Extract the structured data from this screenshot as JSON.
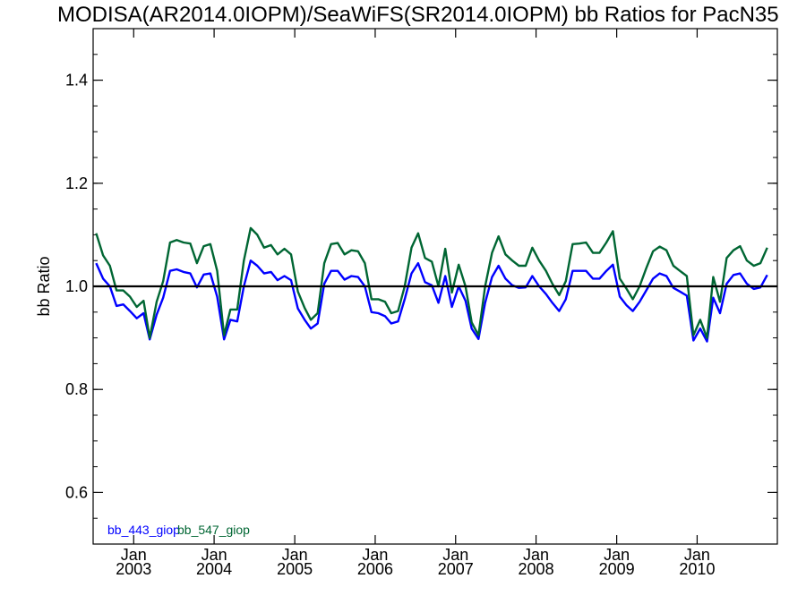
{
  "chart_data": {
    "type": "line",
    "title": "MODISA(AR2014.0IOPM)/SeaWiFS(SR2014.0IOPM)  bb Ratios for PacN35",
    "ylabel": "bb Ratio",
    "xlabel": "",
    "xlim": [
      "2002-07-01",
      "2010-12-31"
    ],
    "ylim": [
      0.5,
      1.5
    ],
    "yticks": [
      0.6,
      0.8,
      1.0,
      1.2,
      1.4
    ],
    "ytick_labels": [
      "0.6",
      "0.8",
      "1.0",
      "1.2",
      "1.4"
    ],
    "xticks": [
      {
        "date": "2003-01-01",
        "month": "Jan",
        "year": "2003"
      },
      {
        "date": "2004-01-01",
        "month": "Jan",
        "year": "2004"
      },
      {
        "date": "2005-01-01",
        "month": "Jan",
        "year": "2005"
      },
      {
        "date": "2006-01-01",
        "month": "Jan",
        "year": "2006"
      },
      {
        "date": "2007-01-01",
        "month": "Jan",
        "year": "2007"
      },
      {
        "date": "2008-01-01",
        "month": "Jan",
        "year": "2008"
      },
      {
        "date": "2009-01-01",
        "month": "Jan",
        "year": "2009"
      },
      {
        "date": "2010-01-01",
        "month": "Jan",
        "year": "2010"
      }
    ],
    "reference_line": {
      "y": 1.0,
      "color": "#000000"
    },
    "grid": false,
    "legend_position": "bottom-left",
    "series": [
      {
        "name": "bb_443_giop",
        "color": "#0000ff",
        "points": [
          [
            "2002-07-15",
            1.045
          ],
          [
            "2002-08-15",
            1.015
          ],
          [
            "2002-09-15",
            1.0
          ],
          [
            "2002-10-15",
            0.962
          ],
          [
            "2002-11-15",
            0.965
          ],
          [
            "2002-12-15",
            0.952
          ],
          [
            "2003-01-15",
            0.938
          ],
          [
            "2003-02-15",
            0.948
          ],
          [
            "2003-03-15",
            0.897
          ],
          [
            "2003-04-15",
            0.945
          ],
          [
            "2003-05-15",
            0.978
          ],
          [
            "2003-06-15",
            1.03
          ],
          [
            "2003-07-15",
            1.033
          ],
          [
            "2003-08-15",
            1.028
          ],
          [
            "2003-09-15",
            1.025
          ],
          [
            "2003-10-15",
            0.998
          ],
          [
            "2003-11-15",
            1.023
          ],
          [
            "2003-12-15",
            1.025
          ],
          [
            "2004-01-15",
            0.98
          ],
          [
            "2004-02-15",
            0.897
          ],
          [
            "2004-03-15",
            0.935
          ],
          [
            "2004-04-15",
            0.932
          ],
          [
            "2004-05-15",
            1.0
          ],
          [
            "2004-06-15",
            1.05
          ],
          [
            "2004-07-15",
            1.04
          ],
          [
            "2004-08-15",
            1.025
          ],
          [
            "2004-09-15",
            1.028
          ],
          [
            "2004-10-15",
            1.012
          ],
          [
            "2004-11-15",
            1.02
          ],
          [
            "2004-12-15",
            1.012
          ],
          [
            "2005-01-15",
            0.957
          ],
          [
            "2005-02-15",
            0.935
          ],
          [
            "2005-03-15",
            0.918
          ],
          [
            "2005-04-15",
            0.928
          ],
          [
            "2005-05-15",
            1.005
          ],
          [
            "2005-06-15",
            1.03
          ],
          [
            "2005-07-15",
            1.03
          ],
          [
            "2005-08-15",
            1.013
          ],
          [
            "2005-09-15",
            1.02
          ],
          [
            "2005-10-15",
            1.018
          ],
          [
            "2005-11-15",
            1.0
          ],
          [
            "2005-12-15",
            0.95
          ],
          [
            "2006-01-15",
            0.948
          ],
          [
            "2006-02-15",
            0.942
          ],
          [
            "2006-03-15",
            0.928
          ],
          [
            "2006-04-15",
            0.932
          ],
          [
            "2006-05-15",
            0.975
          ],
          [
            "2006-06-15",
            1.025
          ],
          [
            "2006-07-15",
            1.045
          ],
          [
            "2006-08-15",
            1.008
          ],
          [
            "2006-09-15",
            1.002
          ],
          [
            "2006-10-15",
            0.968
          ],
          [
            "2006-11-15",
            1.02
          ],
          [
            "2006-12-15",
            0.96
          ],
          [
            "2007-01-15",
            1.0
          ],
          [
            "2007-02-15",
            0.972
          ],
          [
            "2007-03-15",
            0.918
          ],
          [
            "2007-04-15",
            0.898
          ],
          [
            "2007-05-15",
            0.968
          ],
          [
            "2007-06-15",
            1.018
          ],
          [
            "2007-07-15",
            1.04
          ],
          [
            "2007-08-15",
            1.015
          ],
          [
            "2007-09-15",
            1.002
          ],
          [
            "2007-10-15",
            0.997
          ],
          [
            "2007-11-15",
            0.998
          ],
          [
            "2007-12-15",
            1.02
          ],
          [
            "2008-01-15",
            1.0
          ],
          [
            "2008-02-15",
            0.985
          ],
          [
            "2008-03-15",
            0.968
          ],
          [
            "2008-04-15",
            0.952
          ],
          [
            "2008-05-15",
            0.975
          ],
          [
            "2008-06-15",
            1.03
          ],
          [
            "2008-07-15",
            1.03
          ],
          [
            "2008-08-15",
            1.03
          ],
          [
            "2008-09-15",
            1.015
          ],
          [
            "2008-10-15",
            1.015
          ],
          [
            "2008-11-15",
            1.03
          ],
          [
            "2008-12-15",
            1.042
          ],
          [
            "2009-01-15",
            0.98
          ],
          [
            "2009-02-15",
            0.963
          ],
          [
            "2009-03-15",
            0.952
          ],
          [
            "2009-04-15",
            0.97
          ],
          [
            "2009-05-15",
            0.992
          ],
          [
            "2009-06-15",
            1.015
          ],
          [
            "2009-07-15",
            1.025
          ],
          [
            "2009-08-15",
            1.02
          ],
          [
            "2009-09-15",
            0.997
          ],
          [
            "2009-10-15",
            0.99
          ],
          [
            "2009-11-15",
            0.982
          ],
          [
            "2009-12-15",
            0.895
          ],
          [
            "2010-01-15",
            0.918
          ],
          [
            "2010-02-15",
            0.893
          ],
          [
            "2010-03-15",
            0.978
          ],
          [
            "2010-04-15",
            0.948
          ],
          [
            "2010-05-15",
            1.005
          ],
          [
            "2010-06-15",
            1.022
          ],
          [
            "2010-07-15",
            1.025
          ],
          [
            "2010-08-15",
            1.005
          ],
          [
            "2010-09-15",
            0.995
          ],
          [
            "2010-10-15",
            0.998
          ],
          [
            "2010-11-15",
            1.022
          ]
        ]
      },
      {
        "name": "bb_547_giop",
        "color": "#006633",
        "points": [
          [
            "2002-07-15",
            1.103
          ],
          [
            "2002-08-15",
            1.06
          ],
          [
            "2002-09-15",
            1.04
          ],
          [
            "2002-10-15",
            0.992
          ],
          [
            "2002-11-15",
            0.992
          ],
          [
            "2002-12-15",
            0.98
          ],
          [
            "2003-01-15",
            0.96
          ],
          [
            "2003-02-15",
            0.972
          ],
          [
            "2003-03-15",
            0.9
          ],
          [
            "2003-04-15",
            0.97
          ],
          [
            "2003-05-15",
            1.01
          ],
          [
            "2003-06-15",
            1.085
          ],
          [
            "2003-07-15",
            1.09
          ],
          [
            "2003-08-15",
            1.085
          ],
          [
            "2003-09-15",
            1.083
          ],
          [
            "2003-10-15",
            1.045
          ],
          [
            "2003-11-15",
            1.078
          ],
          [
            "2003-12-15",
            1.082
          ],
          [
            "2004-01-15",
            1.03
          ],
          [
            "2004-02-15",
            0.905
          ],
          [
            "2004-03-15",
            0.955
          ],
          [
            "2004-04-15",
            0.955
          ],
          [
            "2004-05-15",
            1.05
          ],
          [
            "2004-06-15",
            1.113
          ],
          [
            "2004-07-15",
            1.1
          ],
          [
            "2004-08-15",
            1.075
          ],
          [
            "2004-09-15",
            1.08
          ],
          [
            "2004-10-15",
            1.062
          ],
          [
            "2004-11-15",
            1.073
          ],
          [
            "2004-12-15",
            1.062
          ],
          [
            "2005-01-15",
            0.99
          ],
          [
            "2005-02-15",
            0.958
          ],
          [
            "2005-03-15",
            0.935
          ],
          [
            "2005-04-15",
            0.948
          ],
          [
            "2005-05-15",
            1.045
          ],
          [
            "2005-06-15",
            1.082
          ],
          [
            "2005-07-15",
            1.084
          ],
          [
            "2005-08-15",
            1.062
          ],
          [
            "2005-09-15",
            1.07
          ],
          [
            "2005-10-15",
            1.068
          ],
          [
            "2005-11-15",
            1.045
          ],
          [
            "2005-12-15",
            0.975
          ],
          [
            "2006-01-15",
            0.975
          ],
          [
            "2006-02-15",
            0.97
          ],
          [
            "2006-03-15",
            0.948
          ],
          [
            "2006-04-15",
            0.952
          ],
          [
            "2006-05-15",
            1.0
          ],
          [
            "2006-06-15",
            1.075
          ],
          [
            "2006-07-15",
            1.103
          ],
          [
            "2006-08-15",
            1.055
          ],
          [
            "2006-09-15",
            1.048
          ],
          [
            "2006-10-15",
            1.0
          ],
          [
            "2006-11-15",
            1.073
          ],
          [
            "2006-12-15",
            0.988
          ],
          [
            "2007-01-15",
            1.042
          ],
          [
            "2007-02-15",
            1.0
          ],
          [
            "2007-03-15",
            0.93
          ],
          [
            "2007-04-15",
            0.905
          ],
          [
            "2007-05-15",
            1.0
          ],
          [
            "2007-06-15",
            1.065
          ],
          [
            "2007-07-15",
            1.097
          ],
          [
            "2007-08-15",
            1.062
          ],
          [
            "2007-09-15",
            1.05
          ],
          [
            "2007-10-15",
            1.04
          ],
          [
            "2007-11-15",
            1.04
          ],
          [
            "2007-12-15",
            1.075
          ],
          [
            "2008-01-15",
            1.05
          ],
          [
            "2008-02-15",
            1.03
          ],
          [
            "2008-03-15",
            1.005
          ],
          [
            "2008-04-15",
            0.983
          ],
          [
            "2008-05-15",
            1.01
          ],
          [
            "2008-06-15",
            1.082
          ],
          [
            "2008-07-15",
            1.083
          ],
          [
            "2008-08-15",
            1.085
          ],
          [
            "2008-09-15",
            1.065
          ],
          [
            "2008-10-15",
            1.065
          ],
          [
            "2008-11-15",
            1.085
          ],
          [
            "2008-12-15",
            1.107
          ],
          [
            "2009-01-15",
            1.015
          ],
          [
            "2009-02-15",
            0.995
          ],
          [
            "2009-03-15",
            0.975
          ],
          [
            "2009-04-15",
            1.0
          ],
          [
            "2009-05-15",
            1.035
          ],
          [
            "2009-06-15",
            1.068
          ],
          [
            "2009-07-15",
            1.077
          ],
          [
            "2009-08-15",
            1.07
          ],
          [
            "2009-09-15",
            1.04
          ],
          [
            "2009-10-15",
            1.03
          ],
          [
            "2009-11-15",
            1.02
          ],
          [
            "2009-12-15",
            0.905
          ],
          [
            "2010-01-15",
            0.935
          ],
          [
            "2010-02-15",
            0.9
          ],
          [
            "2010-03-15",
            1.018
          ],
          [
            "2010-04-15",
            0.97
          ],
          [
            "2010-05-15",
            1.055
          ],
          [
            "2010-06-15",
            1.07
          ],
          [
            "2010-07-15",
            1.078
          ],
          [
            "2010-08-15",
            1.05
          ],
          [
            "2010-09-15",
            1.04
          ],
          [
            "2010-10-15",
            1.045
          ],
          [
            "2010-11-15",
            1.075
          ]
        ]
      }
    ]
  }
}
